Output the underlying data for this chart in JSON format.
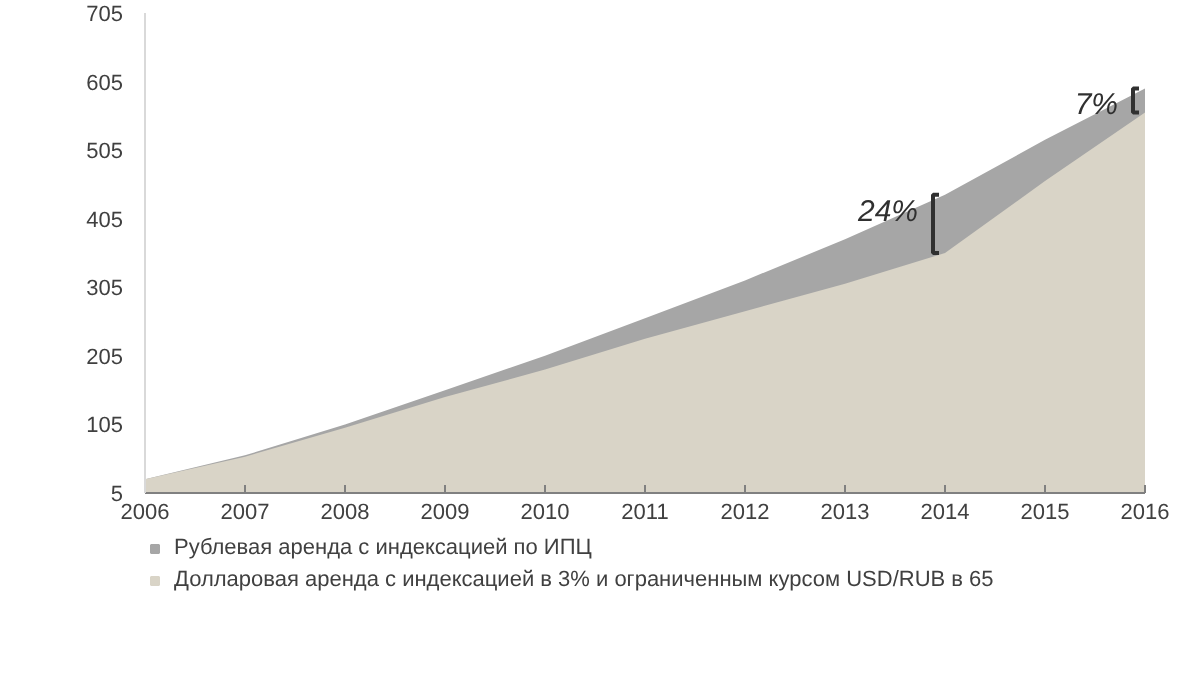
{
  "chart_data": {
    "type": "area",
    "x": [
      2006,
      2007,
      2008,
      2009,
      2010,
      2011,
      2012,
      2013,
      2014,
      2015,
      2016
    ],
    "series": [
      {
        "name": "Рублевая аренда с индексацией по ИПЦ",
        "color": "#a6a6a6",
        "values": [
          25,
          60,
          105,
          155,
          205,
          260,
          315,
          375,
          440,
          520,
          595
        ]
      },
      {
        "name": "Долларовая аренда с индексацией в 3% и ограниченным курсом USD/RUB в 65",
        "color": "#d9d4c7",
        "values": [
          25,
          58,
          100,
          145,
          185,
          230,
          270,
          310,
          355,
          460,
          560
        ]
      }
    ],
    "xlim": [
      2006,
      2016
    ],
    "xticks": [
      2006,
      2007,
      2008,
      2009,
      2010,
      2011,
      2012,
      2013,
      2014,
      2015,
      2016
    ],
    "ylim": [
      5,
      705
    ],
    "yticks": [
      5,
      105,
      205,
      305,
      405,
      505,
      605,
      705
    ],
    "annotations": [
      {
        "text": "24%",
        "x": 2014,
        "y": 440
      },
      {
        "text": "7%",
        "x": 2016,
        "y": 595
      }
    ],
    "grid": false,
    "legend": "bottom"
  }
}
